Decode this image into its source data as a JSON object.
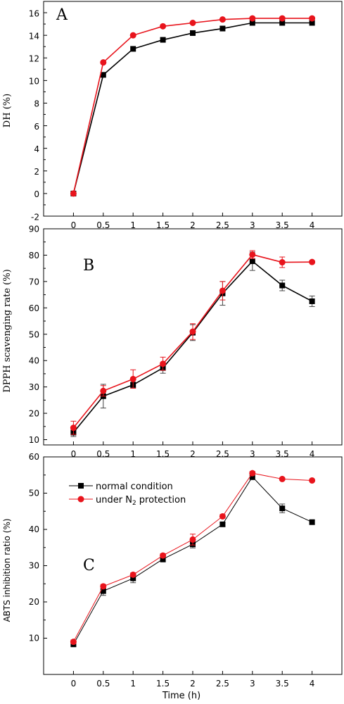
{
  "chart_data": [
    {
      "type": "line",
      "panel": "A",
      "ylabel": "DH (%)",
      "xlabel": "",
      "ylim": [
        -2,
        17
      ],
      "xlim": [
        -0.5,
        4.5
      ],
      "x": [
        0,
        0.5,
        1,
        1.5,
        2,
        2.5,
        3,
        3.5,
        4
      ],
      "x_ticks": [
        "0",
        "0.5",
        "1",
        "1.5",
        "2",
        "2.5",
        "3",
        "3.5",
        "4"
      ],
      "y_ticks": [
        -2,
        0,
        2,
        4,
        6,
        8,
        10,
        12,
        14,
        16
      ],
      "series": [
        {
          "name": "normal condition",
          "color": "#000000",
          "marker": "square",
          "values": [
            0,
            10.5,
            12.8,
            13.6,
            14.2,
            14.6,
            15.1,
            15.1,
            15.1
          ],
          "errors": []
        },
        {
          "name": "under N2 protection",
          "color": "#e8141c",
          "marker": "circle",
          "values": [
            0,
            11.6,
            14.0,
            14.8,
            15.1,
            15.4,
            15.5,
            15.5,
            15.5
          ],
          "errors": []
        }
      ]
    },
    {
      "type": "line",
      "panel": "B",
      "ylabel": "DPPH scavenging rate (%)",
      "xlabel": "",
      "ylim": [
        8,
        90
      ],
      "xlim": [
        -0.5,
        4.5
      ],
      "x": [
        0,
        0.5,
        1,
        1.5,
        2,
        2.5,
        3,
        3.5,
        4
      ],
      "x_ticks": [
        "0",
        "0.5",
        "1",
        "1.5",
        "2",
        "2.5",
        "3",
        "3.5",
        "4"
      ],
      "y_ticks": [
        10,
        20,
        30,
        40,
        50,
        60,
        70,
        80,
        90
      ],
      "series": [
        {
          "name": "normal condition",
          "color": "#000000",
          "marker": "square",
          "values": [
            12.7,
            26.5,
            30.8,
            37.2,
            50.6,
            65.5,
            77.7,
            68.5,
            62.5
          ],
          "errors": [
            1.5,
            4.5,
            1.0,
            2.0,
            3.0,
            4.5,
            3.5,
            2.0,
            2.0
          ]
        },
        {
          "name": "under N2 protection",
          "color": "#e8141c",
          "marker": "circle",
          "values": [
            14.5,
            28.5,
            33.0,
            38.8,
            51.0,
            66.5,
            80.2,
            77.3,
            77.4
          ],
          "errors": [
            2.5,
            2.0,
            3.5,
            2.5,
            3.0,
            3.5,
            1.5,
            2.0,
            0.5
          ]
        }
      ]
    },
    {
      "type": "line",
      "panel": "C",
      "ylabel": "ABTS inhibition ratio (%)",
      "xlabel": "Time (h)",
      "ylim": [
        0,
        60
      ],
      "xlim": [
        -0.5,
        4.5
      ],
      "x": [
        0,
        0.5,
        1,
        1.5,
        2,
        2.5,
        3,
        3.5,
        4
      ],
      "x_ticks": [
        "0",
        "0.5",
        "1",
        "1.5",
        "2",
        "2.5",
        "3",
        "3.5",
        "4"
      ],
      "y_ticks": [
        10,
        20,
        30,
        40,
        50,
        60
      ],
      "legend": "top-left",
      "series": [
        {
          "name": "normal condition",
          "color": "#000000",
          "marker": "square",
          "values": [
            8.3,
            23.0,
            26.5,
            31.8,
            35.9,
            41.4,
            54.5,
            45.8,
            42.0
          ],
          "errors": [
            0.5,
            1.2,
            1.2,
            0.8,
            1.0,
            0.5,
            0.8,
            1.2,
            0.5
          ]
        },
        {
          "name": "under N2 protection",
          "color": "#e8141c",
          "marker": "circle",
          "values": [
            9.0,
            24.3,
            27.5,
            32.8,
            37.2,
            43.6,
            55.5,
            53.9,
            53.5
          ],
          "errors": [
            0.5,
            0.5,
            0.5,
            0.5,
            1.5,
            0.5,
            0.5,
            0.3,
            0.3
          ]
        }
      ]
    }
  ],
  "labels": {
    "panel_a": "A",
    "panel_b": "B",
    "panel_c": "C",
    "ylabel_a": "DH (%)",
    "ylabel_b": "DPPH scavenging rate (%)",
    "ylabel_c": "ABTS inhibition ratio (%)",
    "xlabel": "Time (h)",
    "legend_normal": "normal condition",
    "legend_n2_before": "under N",
    "legend_n2_sub": "2",
    "legend_n2_after": " protection"
  }
}
